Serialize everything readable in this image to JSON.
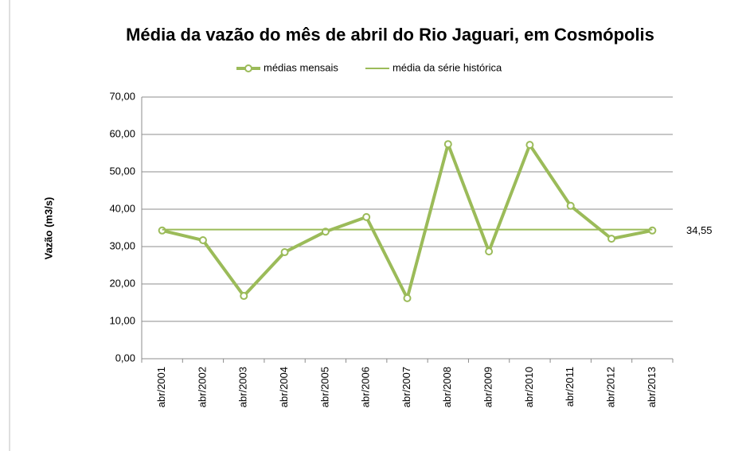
{
  "chart_data": {
    "type": "line",
    "title": "Média da vazão do mês de abril do Rio Jaguari, em Cosmópolis",
    "y_label": "Vazão (m3/s)",
    "categories": [
      "abr/2001",
      "abr/2002",
      "abr/2003",
      "abr/2004",
      "abr/2005",
      "abr/2006",
      "abr/2007",
      "abr/2008",
      "abr/2009",
      "abr/2010",
      "abr/2011",
      "abr/2012",
      "abr/2013"
    ],
    "series": [
      {
        "name": "médias mensais",
        "color": "#9bbb59",
        "marker": "circle",
        "values": [
          34.3,
          31.7,
          16.8,
          28.5,
          34.0,
          37.9,
          16.2,
          57.4,
          28.7,
          57.2,
          40.9,
          32.1,
          34.3
        ]
      },
      {
        "name": "média da série histórica",
        "color": "#9bbb59",
        "values": [
          34.55,
          34.55,
          34.55,
          34.55,
          34.55,
          34.55,
          34.55,
          34.55,
          34.55,
          34.55,
          34.55,
          34.55,
          34.55
        ],
        "value_labels": [
          null,
          null,
          null,
          null,
          null,
          null,
          null,
          null,
          null,
          null,
          null,
          null,
          "34,55"
        ]
      }
    ],
    "ylim": [
      0,
      70
    ],
    "yticks": [
      {
        "value": 0,
        "label": "0,00"
      },
      {
        "value": 10,
        "label": "10,00"
      },
      {
        "value": 20,
        "label": "20,00"
      },
      {
        "value": 30,
        "label": "30,00"
      },
      {
        "value": 40,
        "label": "40,00"
      },
      {
        "value": 50,
        "label": "50,00"
      },
      {
        "value": 60,
        "label": "60,00"
      },
      {
        "value": 70,
        "label": "70,00"
      }
    ],
    "grid": true,
    "legend": "top"
  }
}
